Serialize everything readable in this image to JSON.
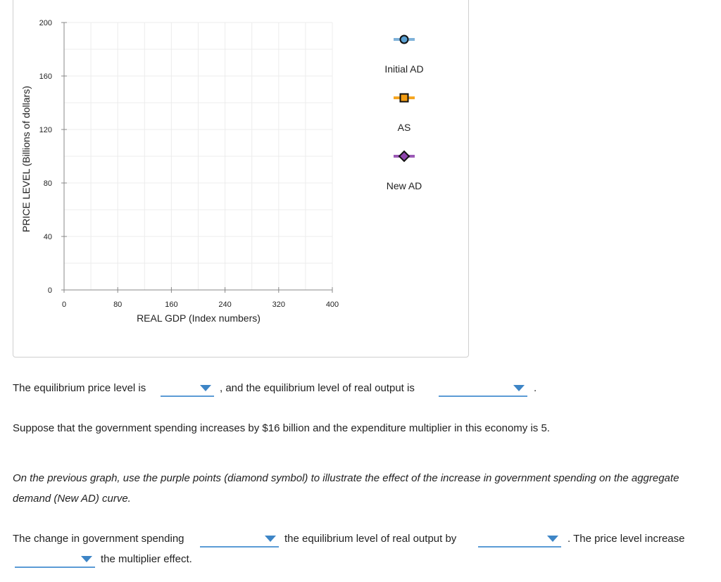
{
  "chart_data": {
    "type": "line",
    "xlabel": "REAL GDP (Index numbers)",
    "ylabel": "PRICE LEVEL (Billions of dollars)",
    "xlim": [
      0,
      400
    ],
    "ylim": [
      0,
      200
    ],
    "x_ticks": [
      0,
      80,
      160,
      240,
      320,
      400
    ],
    "y_ticks": [
      0,
      40,
      80,
      120,
      160,
      200
    ],
    "grid": true,
    "legend_placement": "right",
    "series": [
      {
        "name": "Initial AD",
        "values": [],
        "color": "#7fb2d9",
        "marker": "circle"
      },
      {
        "name": "AS",
        "values": [],
        "color": "#f5a623",
        "marker": "square"
      },
      {
        "name": "New AD",
        "values": [],
        "color": "#9b59b6",
        "marker": "diamond"
      }
    ]
  },
  "questions": {
    "q1_part1": "The equilibrium price level is",
    "q1_part2": ", and the equilibrium level of real output is",
    "q1_part3": ".",
    "q2": "Suppose that the government spending increases by $16 billion and the expenditure multiplier in this economy is 5.",
    "q3_line1": "On the previous graph, use the purple points (diamond symbol) to illustrate the effect of the increase in government spending on the aggregate",
    "q3_line2": "demand (New AD) curve.",
    "q4_part1": "The change in government spending",
    "q4_part2": "the equilibrium level of real output by",
    "q4_part3": ". The price level increase",
    "q4_part4": "the multiplier effect."
  },
  "dropdowns": {
    "price_level": "",
    "real_output": "",
    "gov_change": "",
    "output_change": "",
    "price_effect": ""
  }
}
